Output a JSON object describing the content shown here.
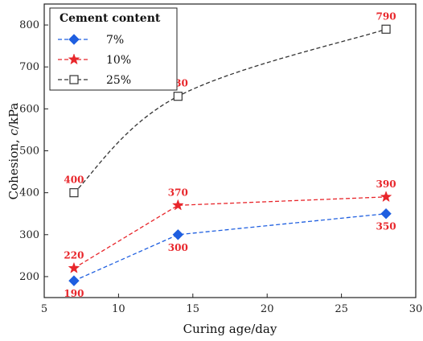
{
  "chart_data": {
    "type": "line",
    "xlabel": "Curing age/day",
    "ylabel_prefix": "Cohesion, ",
    "ylabel_var": "c",
    "ylabel_suffix": "/kPa",
    "xlim": [
      5,
      30
    ],
    "ylim": [
      150,
      850
    ],
    "xticks": [
      5,
      10,
      15,
      20,
      25,
      30
    ],
    "yticks": [
      200,
      300,
      400,
      500,
      600,
      700,
      800
    ],
    "grid": false,
    "legend_title": "Cement content",
    "legend_position": "top-left",
    "series": [
      {
        "name": "7%",
        "color": "#1f5fe0",
        "marker": "diamond",
        "x": [
          7,
          14,
          28
        ],
        "y": [
          190,
          300,
          350
        ],
        "labels": [
          "190",
          "300",
          "350"
        ],
        "smooth": false
      },
      {
        "name": "10%",
        "color": "#e8262b",
        "marker": "star",
        "x": [
          7,
          14,
          28
        ],
        "y": [
          220,
          370,
          390
        ],
        "labels": [
          "220",
          "370",
          "390"
        ],
        "smooth": false
      },
      {
        "name": "25%",
        "color": "#333333",
        "marker": "square-open",
        "x": [
          7,
          14,
          28
        ],
        "y": [
          400,
          630,
          790
        ],
        "labels": [
          "400",
          "630",
          "790"
        ],
        "smooth": true
      }
    ]
  }
}
